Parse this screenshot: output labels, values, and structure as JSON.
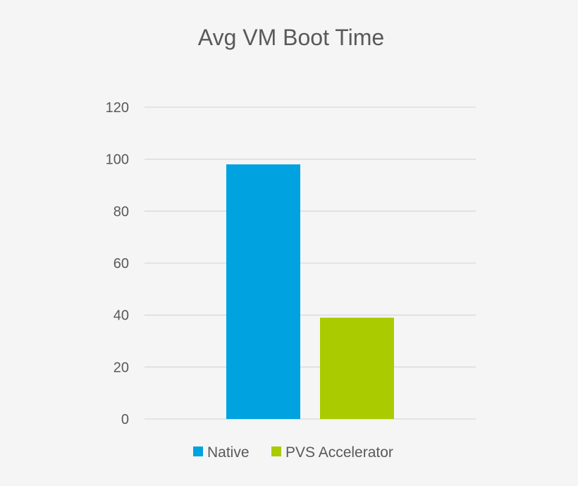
{
  "chart_data": {
    "type": "bar",
    "title": "Avg VM Boot Time",
    "xlabel": "",
    "ylabel": "",
    "categories": [
      ""
    ],
    "series": [
      {
        "name": "Native",
        "values": [
          98
        ],
        "color": "#00a2e0"
      },
      {
        "name": "PVS Accelerator",
        "values": [
          39
        ],
        "color": "#a9cb00"
      }
    ],
    "ylim": [
      0,
      120
    ],
    "yticks": [
      0,
      20,
      40,
      60,
      80,
      100,
      120
    ],
    "grid": true,
    "legend": "bottom"
  }
}
